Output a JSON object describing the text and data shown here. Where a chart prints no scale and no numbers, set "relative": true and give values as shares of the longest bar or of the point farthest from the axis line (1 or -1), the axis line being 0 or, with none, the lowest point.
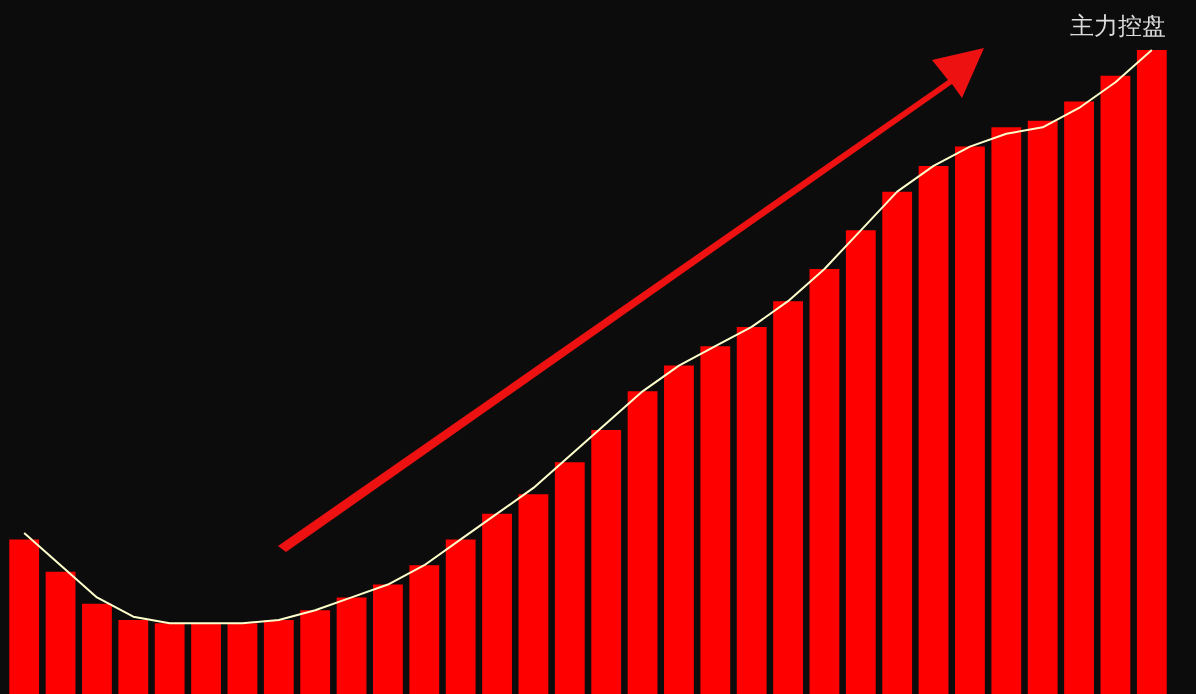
{
  "chart_data": [
    {
      "type": "bar",
      "title": "主力控盘",
      "relative": true,
      "categories": [
        null,
        null,
        null,
        null,
        null,
        null,
        null,
        null,
        null,
        null,
        null,
        null,
        null,
        null,
        null,
        null,
        null,
        null,
        null,
        null,
        null,
        null,
        null,
        null,
        null,
        null,
        null,
        null,
        null,
        null,
        null,
        null
      ],
      "color": "#ff0000",
      "values": [
        0.24,
        0.19,
        0.14,
        0.115,
        0.11,
        0.11,
        0.11,
        0.115,
        0.13,
        0.15,
        0.17,
        0.2,
        0.24,
        0.28,
        0.31,
        0.36,
        0.41,
        0.47,
        0.51,
        0.54,
        0.57,
        0.61,
        0.66,
        0.72,
        0.78,
        0.82,
        0.85,
        0.88,
        0.89,
        0.92,
        0.96,
        1
      ]
    },
    {
      "type": "line",
      "relative": true,
      "categories": [
        null,
        null,
        null,
        null,
        null,
        null,
        null,
        null,
        null,
        null,
        null,
        null,
        null,
        null,
        null,
        null,
        null,
        null,
        null,
        null,
        null,
        null,
        null,
        null,
        null,
        null,
        null,
        null,
        null,
        null,
        null,
        null
      ],
      "color": "#ffffcc",
      "values": [
        0.25,
        0.2,
        0.15,
        0.12,
        0.11,
        0.11,
        0.11,
        0.115,
        0.13,
        0.15,
        0.17,
        0.2,
        0.24,
        0.28,
        0.32,
        0.37,
        0.42,
        0.47,
        0.51,
        0.54,
        0.57,
        0.61,
        0.66,
        0.72,
        0.78,
        0.82,
        0.85,
        0.87,
        0.88,
        0.91,
        0.95,
        1
      ]
    }
  ]
}
